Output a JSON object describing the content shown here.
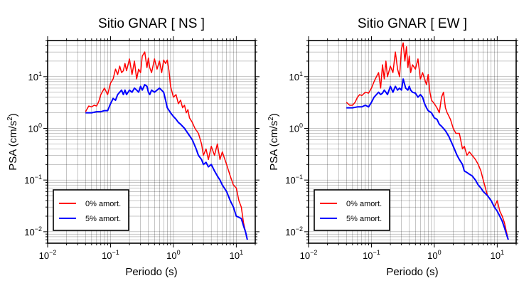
{
  "chart_data": [
    {
      "type": "line",
      "title": "Sitio GNAR [ NS ]",
      "xlabel": "Periodo (s)",
      "ylabel": "PSA (cm/s²)",
      "ylabel_text": "PSA (cm/s",
      "ylabel_sup": "2",
      "ylabel_close": ")",
      "xscale": "log",
      "yscale": "log",
      "xlim": [
        0.01,
        20
      ],
      "ylim": [
        0.006,
        50
      ],
      "grid": true,
      "legend_position": "bottom-left",
      "xticks": [
        {
          "value": 0.01,
          "base": "10",
          "exp": "−2"
        },
        {
          "value": 0.1,
          "base": "10",
          "exp": "−1"
        },
        {
          "value": 1,
          "base": "10",
          "exp": "0"
        },
        {
          "value": 10,
          "base": "10",
          "exp": "1"
        }
      ],
      "yticks": [
        {
          "value": 0.01,
          "base": "10",
          "exp": "−2"
        },
        {
          "value": 0.1,
          "base": "10",
          "exp": "−1"
        },
        {
          "value": 1,
          "base": "10",
          "exp": "0"
        },
        {
          "value": 10,
          "base": "10",
          "exp": "1"
        }
      ],
      "series": [
        {
          "name": "0% amort.",
          "color": "#ff0000",
          "x": [
            0.04,
            0.045,
            0.05,
            0.055,
            0.06,
            0.065,
            0.07,
            0.08,
            0.09,
            0.1,
            0.11,
            0.12,
            0.13,
            0.14,
            0.15,
            0.16,
            0.17,
            0.18,
            0.2,
            0.22,
            0.24,
            0.26,
            0.28,
            0.3,
            0.32,
            0.35,
            0.38,
            0.4,
            0.42,
            0.45,
            0.5,
            0.55,
            0.6,
            0.65,
            0.7,
            0.75,
            0.8,
            0.85,
            0.9,
            1.0,
            1.1,
            1.2,
            1.3,
            1.4,
            1.5,
            1.6,
            1.7,
            1.8,
            2.0,
            2.2,
            2.5,
            2.8,
            3.0,
            3.3,
            3.6,
            4.0,
            4.5,
            5.0,
            5.5,
            6.0,
            7.0,
            8.0,
            9.0,
            10.0,
            11.0,
            12.0,
            13.0,
            14.0,
            15.0
          ],
          "y": [
            2.1,
            2.7,
            2.6,
            2.8,
            2.7,
            3.3,
            4.5,
            6.0,
            4.5,
            7.5,
            9.0,
            14.0,
            11.0,
            16.0,
            12.0,
            13.0,
            18.0,
            13.0,
            22.0,
            11.0,
            20.0,
            9.0,
            14.0,
            12.0,
            25.0,
            30.0,
            15.0,
            23.0,
            15.0,
            12.0,
            22.0,
            14.0,
            20.0,
            12.0,
            21.0,
            18.0,
            21.0,
            13.0,
            6.5,
            4.0,
            4.5,
            3.0,
            3.5,
            2.5,
            2.8,
            2.0,
            2.3,
            1.6,
            1.3,
            1.0,
            0.8,
            0.5,
            0.3,
            0.4,
            0.25,
            0.45,
            0.3,
            0.5,
            0.25,
            0.35,
            0.2,
            0.12,
            0.08,
            0.07,
            0.04,
            0.03,
            0.015,
            0.01,
            0.007
          ]
        },
        {
          "name": "5% amort.",
          "color": "#0000ff",
          "x": [
            0.04,
            0.05,
            0.06,
            0.07,
            0.08,
            0.09,
            0.1,
            0.11,
            0.12,
            0.13,
            0.14,
            0.15,
            0.16,
            0.17,
            0.18,
            0.2,
            0.22,
            0.24,
            0.26,
            0.28,
            0.3,
            0.32,
            0.35,
            0.38,
            0.4,
            0.42,
            0.45,
            0.5,
            0.55,
            0.6,
            0.7,
            0.75,
            0.8,
            0.9,
            1.0,
            1.1,
            1.2,
            1.3,
            1.5,
            1.7,
            2.0,
            2.3,
            2.5,
            2.8,
            3.0,
            3.3,
            3.6,
            4.0,
            4.5,
            5.0,
            5.5,
            6.0,
            7.0,
            8.0,
            9.0,
            10.0,
            11.0,
            12.0,
            13.0,
            14.0,
            15.0
          ],
          "y": [
            2.0,
            2.0,
            2.1,
            2.1,
            2.2,
            2.2,
            3.0,
            3.8,
            3.5,
            4.5,
            5.0,
            5.5,
            4.5,
            5.5,
            4.5,
            5.5,
            5.0,
            6.0,
            5.5,
            5.0,
            6.5,
            5.5,
            7.0,
            6.5,
            5.0,
            4.5,
            5.5,
            5.0,
            5.5,
            6.0,
            5.0,
            3.5,
            2.5,
            2.0,
            1.7,
            1.5,
            1.3,
            1.2,
            1.0,
            0.8,
            0.6,
            0.4,
            0.3,
            0.25,
            0.2,
            0.22,
            0.18,
            0.2,
            0.15,
            0.12,
            0.1,
            0.08,
            0.06,
            0.04,
            0.03,
            0.02,
            0.019,
            0.018,
            0.013,
            0.01,
            0.007
          ]
        }
      ]
    },
    {
      "type": "line",
      "title": "Sitio GNAR [ EW ]",
      "xlabel": "Periodo (s)",
      "ylabel": "PSA (cm/s²)",
      "ylabel_text": "PSA (cm/s",
      "ylabel_sup": "2",
      "ylabel_close": ")",
      "xscale": "log",
      "yscale": "log",
      "xlim": [
        0.01,
        20
      ],
      "ylim": [
        0.006,
        50
      ],
      "grid": true,
      "legend_position": "bottom-left",
      "xticks": [
        {
          "value": 0.01,
          "base": "10",
          "exp": "−2"
        },
        {
          "value": 0.1,
          "base": "10",
          "exp": "−1"
        },
        {
          "value": 1,
          "base": "10",
          "exp": "0"
        },
        {
          "value": 10,
          "base": "10",
          "exp": "1"
        }
      ],
      "yticks": [
        {
          "value": 0.01,
          "base": "10",
          "exp": "−2"
        },
        {
          "value": 0.1,
          "base": "10",
          "exp": "−1"
        },
        {
          "value": 1,
          "base": "10",
          "exp": "0"
        },
        {
          "value": 10,
          "base": "10",
          "exp": "1"
        }
      ],
      "series": [
        {
          "name": "0% amort.",
          "color": "#ff0000",
          "x": [
            0.04,
            0.045,
            0.05,
            0.055,
            0.06,
            0.065,
            0.07,
            0.08,
            0.09,
            0.1,
            0.11,
            0.12,
            0.13,
            0.14,
            0.15,
            0.16,
            0.17,
            0.18,
            0.2,
            0.22,
            0.24,
            0.26,
            0.28,
            0.3,
            0.32,
            0.34,
            0.36,
            0.38,
            0.4,
            0.42,
            0.45,
            0.5,
            0.55,
            0.6,
            0.65,
            0.7,
            0.75,
            0.8,
            0.85,
            0.9,
            1.0,
            1.1,
            1.2,
            1.3,
            1.4,
            1.5,
            1.6,
            1.8,
            2.0,
            2.2,
            2.5,
            2.8,
            3.0,
            3.3,
            3.6,
            4.0,
            4.5,
            5.0,
            5.5,
            6.0,
            7.0,
            8.0,
            9.0,
            10.0,
            11.0,
            12.0,
            13.0,
            14.0,
            15.0
          ],
          "y": [
            3.2,
            2.8,
            2.8,
            3.2,
            4.0,
            4.5,
            4.3,
            5.0,
            4.8,
            6.0,
            8.0,
            10.0,
            12.0,
            6.0,
            17.0,
            9.0,
            20.0,
            10.0,
            16.0,
            12.0,
            30.0,
            14.0,
            10.0,
            35.0,
            45.0,
            20.0,
            38.0,
            15.0,
            25.0,
            12.0,
            17.0,
            14.0,
            22.0,
            9.0,
            12.0,
            9.0,
            7.0,
            11.0,
            5.0,
            3.5,
            3.0,
            2.5,
            2.0,
            4.0,
            5.0,
            2.5,
            2.0,
            1.5,
            1.0,
            0.8,
            0.8,
            0.4,
            0.45,
            0.3,
            0.35,
            0.3,
            0.25,
            0.2,
            0.15,
            0.1,
            0.05,
            0.04,
            0.03,
            0.04,
            0.025,
            0.02,
            0.015,
            0.01,
            0.007
          ]
        },
        {
          "name": "5% amort.",
          "color": "#0000ff",
          "x": [
            0.04,
            0.05,
            0.06,
            0.07,
            0.08,
            0.09,
            0.1,
            0.11,
            0.12,
            0.13,
            0.14,
            0.15,
            0.16,
            0.17,
            0.18,
            0.2,
            0.22,
            0.24,
            0.26,
            0.28,
            0.3,
            0.32,
            0.35,
            0.38,
            0.4,
            0.42,
            0.45,
            0.5,
            0.55,
            0.6,
            0.65,
            0.7,
            0.75,
            0.8,
            0.9,
            1.0,
            1.1,
            1.2,
            1.3,
            1.5,
            1.7,
            2.0,
            2.3,
            2.5,
            2.8,
            3.0,
            3.3,
            3.6,
            4.0,
            4.5,
            5.0,
            5.5,
            6.0,
            7.0,
            8.0,
            9.0,
            10.0,
            11.0,
            12.0,
            13.0,
            14.0,
            15.0
          ],
          "y": [
            2.5,
            2.5,
            2.6,
            2.6,
            2.8,
            2.6,
            3.2,
            4.0,
            4.5,
            5.0,
            4.5,
            4.8,
            5.5,
            5.0,
            4.5,
            6.5,
            5.0,
            6.5,
            5.5,
            6.0,
            5.5,
            9.0,
            6.0,
            5.5,
            6.5,
            5.5,
            5.0,
            4.8,
            4.0,
            4.5,
            4.0,
            3.0,
            2.5,
            2.2,
            2.0,
            1.6,
            1.5,
            1.2,
            1.1,
            0.9,
            0.7,
            0.45,
            0.3,
            0.25,
            0.2,
            0.15,
            0.14,
            0.13,
            0.12,
            0.1,
            0.08,
            0.07,
            0.06,
            0.05,
            0.04,
            0.03,
            0.025,
            0.02,
            0.016,
            0.012,
            0.009,
            0.007
          ]
        }
      ]
    }
  ]
}
